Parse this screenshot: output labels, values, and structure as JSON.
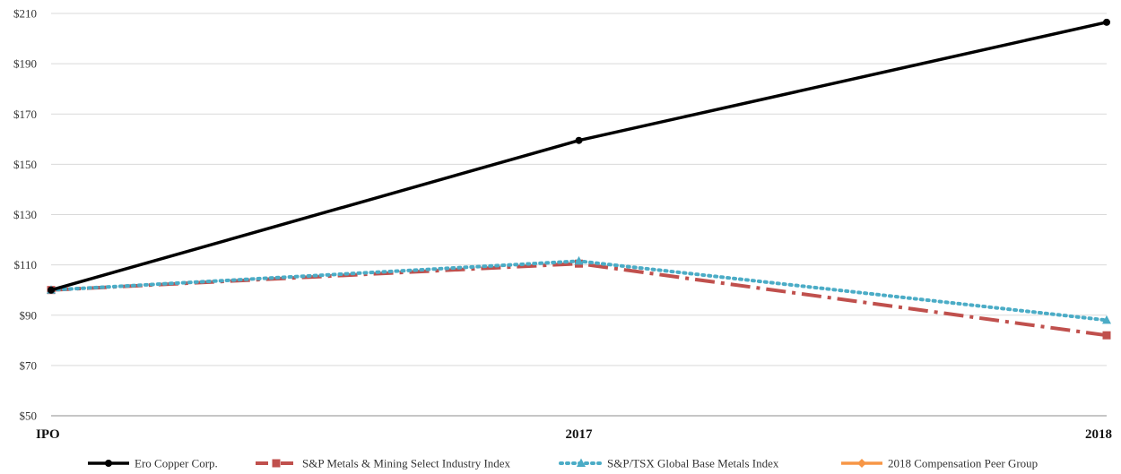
{
  "chart_data": {
    "type": "line",
    "title": "",
    "xlabel": "",
    "ylabel": "",
    "categories": [
      "IPO",
      "2017",
      "2018"
    ],
    "ylim": [
      50,
      210
    ],
    "yticks": [
      50,
      70,
      90,
      110,
      130,
      150,
      170,
      190,
      210
    ],
    "ytick_labels": [
      "$50",
      "$70",
      "$90",
      "$110",
      "$130",
      "$150",
      "$170",
      "$190",
      "$210"
    ],
    "grid": "horizontal",
    "legend_position": "bottom",
    "series": [
      {
        "name": "Ero Copper Corp.",
        "values": [
          100,
          159.5,
          206.5
        ],
        "color": "#000000",
        "dash": "solid",
        "marker": "circle"
      },
      {
        "name": "S&P Metals & Mining Select Industry Index",
        "values": [
          100,
          110.5,
          82
        ],
        "color": "#c0504d",
        "dash": "dashdot",
        "marker": "square"
      },
      {
        "name": "S&P/TSX Global Base Metals Index",
        "values": [
          100,
          111.5,
          88
        ],
        "color": "#4bacc6",
        "dash": "dotted",
        "marker": "triangle"
      },
      {
        "name": "2018 Compensation Peer Group",
        "values": [
          null,
          null,
          null
        ],
        "color": "#f79646",
        "dash": "solid",
        "marker": "diamond"
      }
    ]
  }
}
